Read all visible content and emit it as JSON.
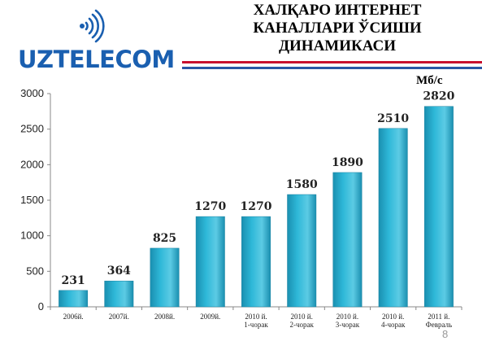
{
  "header": {
    "brand": "UZTELECOM",
    "title_lines": [
      "ХАЛҚАРО ИНТЕРНЕТ",
      "КАНАЛЛАРИ ЎСИШИ",
      "ДИНАМИКАСИ"
    ]
  },
  "page_number": "8",
  "colors": {
    "bar": "#2eb8d8",
    "bar_dark": "#1a8fb0",
    "brand_blue": "#1a5fb0",
    "stripe_red": "#c8102e",
    "stripe_blue": "#2a57a5"
  },
  "icons": {
    "logo": "sound-waves-icon"
  },
  "chart_data": {
    "type": "bar",
    "unit": "Мб/с",
    "categories": [
      [
        "2006й."
      ],
      [
        "2007й."
      ],
      [
        "2008й."
      ],
      [
        "2009й."
      ],
      [
        "2010 й.",
        "1-чорак"
      ],
      [
        "2010 й.",
        "2-чорак"
      ],
      [
        "2010 й.",
        "3-чорак"
      ],
      [
        "2010 й.",
        "4-чорак"
      ],
      [
        "2011 й.",
        "Февраль"
      ]
    ],
    "values": [
      231,
      364,
      825,
      1270,
      1270,
      1580,
      1890,
      2510,
      2820
    ],
    "value_labels": [
      "231",
      "364",
      "825",
      "1270",
      "1270",
      "1580",
      "1890",
      "2510",
      "2820"
    ],
    "yticks": [
      "0",
      "500",
      "1000",
      "1500",
      "2000",
      "2500",
      "3000"
    ],
    "ylim": [
      0,
      3000
    ],
    "grid": false,
    "legend": "none"
  }
}
